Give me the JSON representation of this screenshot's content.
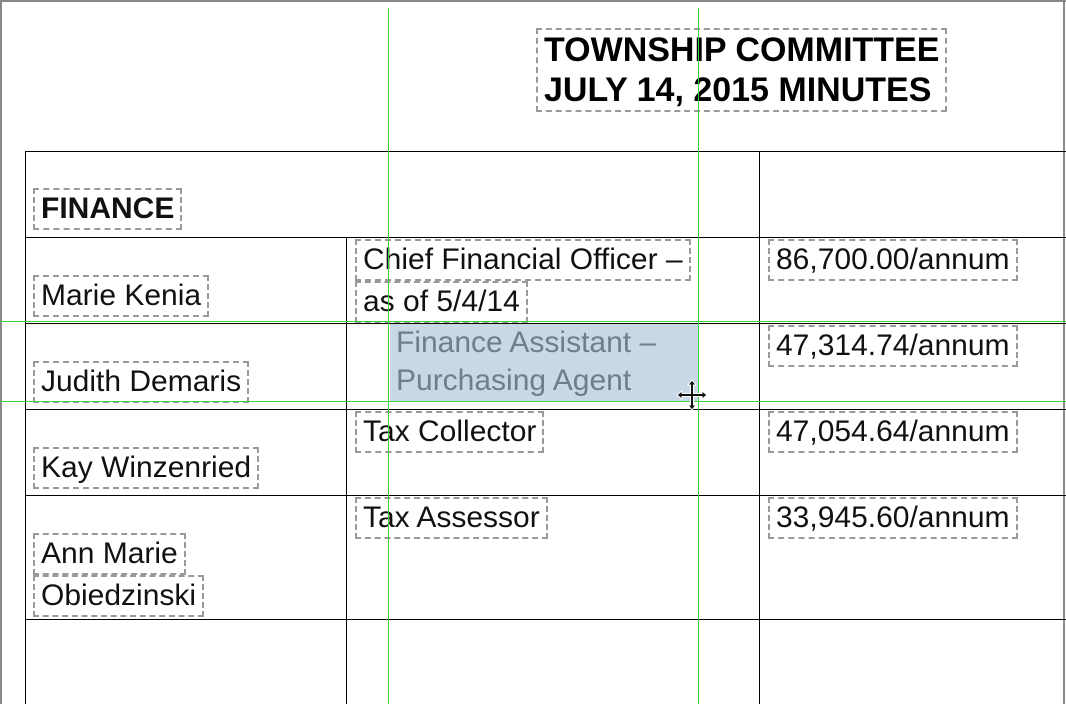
{
  "header": {
    "title": [
      "TOWNSHIP COMMITTEE",
      "JULY 14, 2015 MINUTES"
    ]
  },
  "section": "FINANCE",
  "rows": [
    {
      "name": [
        "Marie Kenia"
      ],
      "position": [
        "Chief Financial Officer –",
        "as of 5/4/14"
      ],
      "salary": "86,700.00/annum"
    },
    {
      "name": [
        "Judith Demaris"
      ],
      "position": [
        "Finance Assistant –",
        "Purchasing Agent"
      ],
      "salary": "47,314.74/annum"
    },
    {
      "name": [
        "Kay Winzenried"
      ],
      "position": [
        "Tax Collector"
      ],
      "salary": "47,054.64/annum"
    },
    {
      "name": [
        "Ann Marie",
        "Obiedzinski"
      ],
      "position": [
        "Tax Assessor"
      ],
      "salary": "33,945.60/annum"
    }
  ]
}
